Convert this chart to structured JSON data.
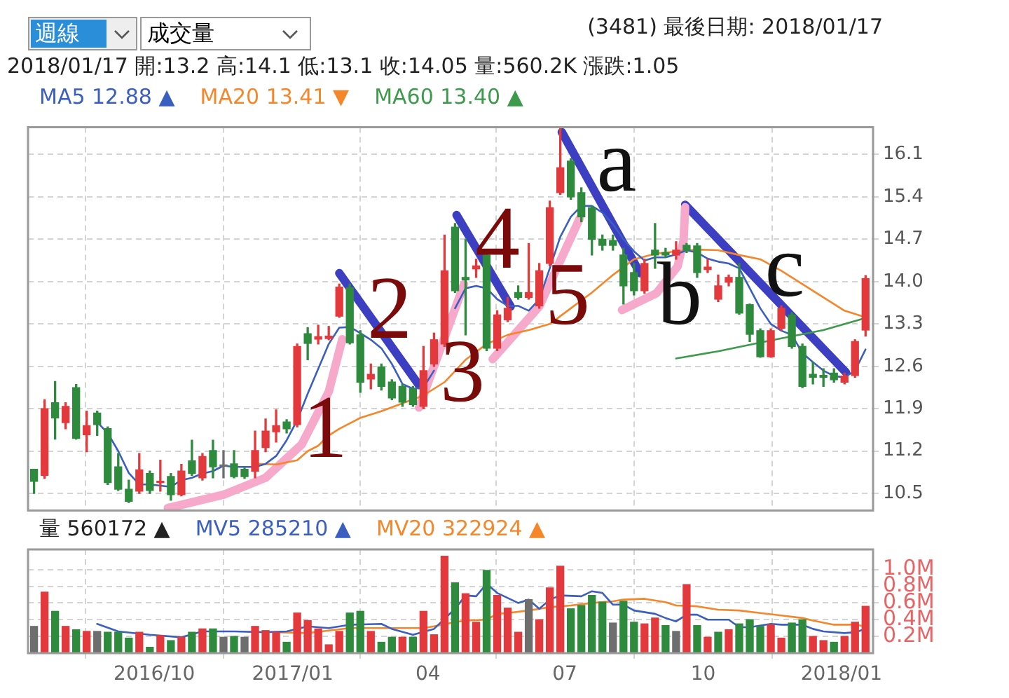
{
  "chart_data": [
    {
      "type": "candlestick",
      "title": "(3481)  最後日期: 2018/01/17",
      "subtitle": "2018/01/17 開:13.2 高:14.1 低:13.1 收:14.05 量:560.2K 漲跌:1.05",
      "x": [
        "2016-07-13",
        "2016-07-20",
        "2016-07-27",
        "2016-08-03",
        "2016-08-10",
        "2016-08-17",
        "2016-08-24",
        "2016-08-31",
        "2016-09-07",
        "2016-09-14",
        "2016-09-21",
        "2016-09-28",
        "2016-10-05",
        "2016-10-12",
        "2016-10-19",
        "2016-10-26",
        "2016-11-02",
        "2016-11-09",
        "2016-11-16",
        "2016-11-23",
        "2016-11-30",
        "2016-12-07",
        "2016-12-14",
        "2016-12-21",
        "2016-12-28",
        "2017-01-04",
        "2017-01-11",
        "2017-01-18",
        "2017-01-25",
        "2017-02-01",
        "2017-02-08",
        "2017-02-15",
        "2017-02-22",
        "2017-03-01",
        "2017-03-08",
        "2017-03-15",
        "2017-03-22",
        "2017-03-29",
        "2017-04-05",
        "2017-04-12",
        "2017-04-19",
        "2017-04-26",
        "2017-05-03",
        "2017-05-10",
        "2017-05-17",
        "2017-05-24",
        "2017-05-31",
        "2017-06-07",
        "2017-06-14",
        "2017-06-21",
        "2017-06-28",
        "2017-07-05",
        "2017-07-12",
        "2017-07-19",
        "2017-07-26",
        "2017-08-02",
        "2017-08-09",
        "2017-08-16",
        "2017-08-23",
        "2017-08-30",
        "2017-09-06",
        "2017-09-13",
        "2017-09-20",
        "2017-09-27",
        "2017-10-04",
        "2017-10-11",
        "2017-10-18",
        "2017-10-25",
        "2017-11-01",
        "2017-11-08",
        "2017-11-15",
        "2017-11-22",
        "2017-11-29",
        "2017-12-06",
        "2017-12-13",
        "2017-12-20",
        "2017-12-27",
        "2018-01-03",
        "2018-01-10",
        "2018-01-17"
      ],
      "ohlc": [
        [
          10.9,
          10.9,
          10.5,
          10.7
        ],
        [
          10.8,
          12.05,
          10.75,
          11.9
        ],
        [
          12.0,
          12.35,
          11.4,
          11.75
        ],
        [
          11.67,
          12.0,
          11.57,
          11.94
        ],
        [
          12.25,
          12.3,
          11.4,
          11.41
        ],
        [
          11.47,
          11.86,
          11.19,
          11.62
        ],
        [
          11.83,
          11.86,
          11.46,
          11.64
        ],
        [
          11.57,
          11.6,
          10.65,
          10.68
        ],
        [
          10.94,
          11.16,
          10.55,
          10.57
        ],
        [
          10.57,
          10.72,
          10.35,
          10.37
        ],
        [
          10.54,
          11.16,
          10.5,
          10.89
        ],
        [
          10.83,
          10.87,
          10.5,
          10.55
        ],
        [
          10.68,
          11.05,
          10.54,
          10.7
        ],
        [
          10.78,
          10.83,
          10.39,
          10.48
        ],
        [
          10.48,
          10.98,
          10.46,
          10.87
        ],
        [
          11.04,
          11.38,
          10.8,
          10.83
        ],
        [
          10.76,
          11.16,
          10.72,
          11.11
        ],
        [
          11.21,
          11.38,
          10.76,
          10.94
        ],
        [
          10.95,
          11.21,
          10.76,
          10.95
        ],
        [
          10.99,
          11.21,
          10.76,
          10.78
        ],
        [
          10.9,
          10.92,
          10.75,
          10.78
        ],
        [
          10.87,
          11.53,
          10.76,
          11.21
        ],
        [
          11.26,
          11.73,
          11.19,
          11.53
        ],
        [
          11.52,
          11.88,
          11.35,
          11.62
        ],
        [
          11.68,
          11.72,
          11.5,
          11.57
        ],
        [
          11.64,
          12.97,
          11.6,
          12.93
        ],
        [
          13.14,
          13.24,
          12.71,
          12.98
        ],
        [
          13.05,
          13.28,
          12.97,
          13.09
        ],
        [
          13.06,
          13.26,
          13.04,
          13.1
        ],
        [
          13.43,
          13.96,
          13.41,
          13.91
        ],
        [
          13.9,
          13.96,
          12.97,
          12.99
        ],
        [
          13.12,
          13.19,
          12.17,
          12.34
        ],
        [
          12.39,
          12.64,
          12.23,
          12.47
        ],
        [
          12.59,
          12.64,
          12.21,
          12.27
        ],
        [
          12.34,
          12.38,
          12.05,
          12.08
        ],
        [
          12.27,
          12.3,
          11.94,
          12.01
        ],
        [
          12.23,
          12.27,
          11.94,
          11.97
        ],
        [
          11.94,
          12.93,
          11.9,
          12.53
        ],
        [
          12.64,
          13.15,
          12.6,
          13.04
        ],
        [
          12.97,
          14.77,
          12.93,
          14.18
        ],
        [
          14.9,
          14.96,
          13.82,
          13.85
        ],
        [
          14.07,
          14.7,
          13.12,
          14.03
        ],
        [
          14.21,
          14.37,
          14.07,
          14.26
        ],
        [
          14.44,
          14.48,
          12.86,
          12.9
        ],
        [
          12.9,
          13.52,
          12.86,
          13.45
        ],
        [
          13.37,
          13.74,
          13.34,
          13.56
        ],
        [
          13.82,
          13.93,
          13.71,
          13.74
        ],
        [
          13.74,
          14.63,
          13.71,
          13.82
        ],
        [
          13.6,
          14.3,
          13.56,
          14.18
        ],
        [
          14.3,
          15.33,
          14.26,
          15.22
        ],
        [
          15.47,
          16.54,
          15.44,
          15.88
        ],
        [
          15.99,
          16.03,
          15.36,
          15.4
        ],
        [
          15.47,
          15.55,
          14.99,
          15.07
        ],
        [
          15.22,
          15.25,
          14.44,
          14.7
        ],
        [
          14.7,
          14.77,
          14.52,
          14.6
        ],
        [
          14.68,
          14.77,
          14.52,
          14.6
        ],
        [
          14.44,
          14.55,
          13.63,
          13.93
        ],
        [
          14.15,
          14.3,
          13.78,
          13.85
        ],
        [
          13.85,
          14.37,
          13.81,
          14.3
        ],
        [
          14.52,
          14.96,
          14.22,
          14.44
        ],
        [
          14.48,
          14.55,
          14.4,
          14.44
        ],
        [
          14.44,
          14.66,
          14.37,
          14.52
        ],
        [
          14.6,
          14.63,
          14.48,
          14.52
        ],
        [
          14.59,
          14.63,
          14.07,
          14.15
        ],
        [
          14.2,
          14.37,
          14.15,
          14.24
        ],
        [
          13.71,
          14.11,
          13.67,
          13.93
        ],
        [
          13.99,
          14.11,
          13.93,
          14.07
        ],
        [
          14.07,
          14.3,
          13.46,
          13.48
        ],
        [
          13.62,
          13.63,
          13.01,
          13.13
        ],
        [
          13.19,
          13.22,
          12.75,
          12.76
        ],
        [
          12.76,
          13.22,
          12.75,
          13.19
        ],
        [
          13.23,
          13.6,
          13.2,
          13.56
        ],
        [
          13.45,
          13.49,
          12.9,
          12.93
        ],
        [
          12.93,
          12.97,
          12.25,
          12.27
        ],
        [
          12.47,
          12.67,
          12.31,
          12.42
        ],
        [
          12.45,
          12.56,
          12.27,
          12.42
        ],
        [
          12.49,
          12.56,
          12.34,
          12.38
        ],
        [
          12.34,
          12.49,
          12.31,
          12.44
        ],
        [
          12.45,
          13.04,
          12.42,
          13.01
        ],
        [
          13.2,
          14.1,
          13.1,
          14.05
        ]
      ],
      "colors": [
        "#2e8b3e",
        "#e4393c",
        "#2e8b3e",
        "#e4393c",
        "#2e8b3e",
        "#e4393c",
        "#2e8b3e",
        "#2e8b3e",
        "#2e8b3e",
        "#2e8b3e",
        "#e4393c",
        "#2e8b3e",
        "#e4393c",
        "#2e8b3e",
        "#e4393c",
        "#2e8b3e",
        "#e4393c",
        "#2e8b3e",
        "#6e6e6e",
        "#2e8b3e",
        "#2e8b3e",
        "#e4393c",
        "#e4393c",
        "#e4393c",
        "#2e8b3e",
        "#e4393c",
        "#2e8b3e",
        "#e4393c",
        "#e4393c",
        "#e4393c",
        "#2e8b3e",
        "#2e8b3e",
        "#e4393c",
        "#2e8b3e",
        "#2e8b3e",
        "#2e8b3e",
        "#2e8b3e",
        "#e4393c",
        "#e4393c",
        "#e4393c",
        "#2e8b3e",
        "#2e8b3e",
        "#e4393c",
        "#2e8b3e",
        "#e4393c",
        "#e4393c",
        "#2e8b3e",
        "#e4393c",
        "#e4393c",
        "#e4393c",
        "#e4393c",
        "#2e8b3e",
        "#2e8b3e",
        "#2e8b3e",
        "#2e8b3e",
        "#2e8b3e",
        "#2e8b3e",
        "#2e8b3e",
        "#e4393c",
        "#2e8b3e",
        "#2e8b3e",
        "#e4393c",
        "#2e8b3e",
        "#2e8b3e",
        "#e4393c",
        "#e4393c",
        "#e4393c",
        "#2e8b3e",
        "#2e8b3e",
        "#2e8b3e",
        "#e4393c",
        "#e4393c",
        "#2e8b3e",
        "#2e8b3e",
        "#2e8b3e",
        "#2e8b3e",
        "#2e8b3e",
        "#e4393c",
        "#e4393c",
        "#e4393c"
      ],
      "series": [
        {
          "type": "line",
          "name": "MA5 12.88 ▲",
          "color": "#3a5fc0",
          "values": [
            null,
            null,
            null,
            null,
            null,
            null,
            11.68,
            11.5,
            11.2,
            10.84,
            10.65,
            10.65,
            10.63,
            10.61,
            10.72,
            10.76,
            10.83,
            10.87,
            10.96,
            10.94,
            10.94,
            10.94,
            10.99,
            11.12,
            11.38,
            11.71,
            12.15,
            12.56,
            12.97,
            13.24,
            13.25,
            13.15,
            13.04,
            12.9,
            12.64,
            12.31,
            12.23,
            12.25,
            12.53,
            null,
            13.56,
            13.89,
            13.93,
            13.89,
            13.71,
            13.6,
            13.6,
            13.52,
            13.71,
            14.22,
            14.74,
            15.07,
            15.25,
            15.25,
            15.14,
            14.95,
            14.7,
            14.5,
            14.35,
            14.4,
            14.4,
            14.45,
            14.52,
            14.48,
            14.38,
            14.33,
            14.3,
            14.22,
            13.89,
            13.56,
            13.3,
            13.19,
            13.12,
            12.82,
            12.67,
            12.53,
            12.44,
            12.42,
            12.53,
            12.88
          ]
        },
        {
          "type": "line",
          "name": "MA20 13.41 ▼",
          "color": "#f5862a",
          "x": [
            "2016-12-07",
            "2016-12-21",
            "2017-01-04",
            "2017-01-11",
            "2017-01-18",
            "2017-01-25",
            "2017-02-01",
            "2017-02-15",
            "2017-03-01",
            "2017-03-15",
            "2017-03-29",
            "2017-04-12",
            "2017-04-26",
            "2017-05-10",
            "2017-05-24",
            "2017-06-07",
            "2017-06-21",
            "2017-07-05",
            "2017-07-19",
            "2017-08-02",
            "2017-08-16",
            "2017-08-30",
            "2017-09-13",
            "2017-09-27",
            "2017-10-11",
            "2017-10-25",
            "2017-11-08",
            "2017-11-22",
            "2017-12-06",
            "2017-12-20",
            "2018-01-03",
            "2018-01-17"
          ],
          "values": [
            10.99,
            10.98,
            11.05,
            11.2,
            11.29,
            11.46,
            11.57,
            11.75,
            11.86,
            11.99,
            12.12,
            12.34,
            12.71,
            12.97,
            13.12,
            13.2,
            13.3,
            13.56,
            13.82,
            14.11,
            14.37,
            14.46,
            14.5,
            14.53,
            14.52,
            14.44,
            14.37,
            14.18,
            13.96,
            13.74,
            13.52,
            13.41
          ]
        },
        {
          "type": "line",
          "name": "MA60 13.40 ▲",
          "color": "#3c9a4a",
          "x": [
            "2017-09-13",
            "2017-10-11",
            "2017-11-15",
            "2017-12-20",
            "2018-01-17"
          ],
          "values": [
            12.73,
            12.85,
            13.03,
            13.2,
            13.4
          ]
        },
        {
          "type": "line",
          "color": "#f6a9cb",
          "x": [
            "2016-10-10",
            "2016-11-16",
            "2016-12-14",
            "2017-01-07",
            "2017-01-25",
            "2017-02-03"
          ],
          "values": [
            10.26,
            10.48,
            10.76,
            11.31,
            12.18,
            13.05
          ]
        },
        {
          "type": "line",
          "color": "#3d3fc2",
          "x": [
            "2017-02-01",
            "2017-03-26"
          ],
          "values": [
            14.14,
            12.29
          ]
        },
        {
          "type": "line",
          "color": "#f6a9cb",
          "x": [
            "2017-03-26",
            "2017-04-25"
          ],
          "values": [
            11.92,
            13.96
          ]
        },
        {
          "type": "line",
          "color": "#3d3fc2",
          "x": [
            "2017-04-20",
            "2017-05-26"
          ],
          "values": [
            15.1,
            13.59
          ]
        },
        {
          "type": "line",
          "color": "#f6a9cb",
          "x": [
            "2017-05-14",
            "2017-06-14",
            "2017-07-11"
          ],
          "values": [
            12.72,
            13.59,
            15.05
          ]
        },
        {
          "type": "line",
          "color": "#3d3fc2",
          "x": [
            "2017-06-29",
            "2017-08-20"
          ],
          "values": [
            16.47,
            14.14
          ]
        },
        {
          "type": "line",
          "color": "#f6a9cb",
          "x": [
            "2017-08-08",
            "2017-08-31",
            "2017-09-14",
            "2017-09-18",
            "2017-09-19"
          ],
          "values": [
            13.53,
            13.81,
            14.25,
            14.68,
            15.23
          ]
        },
        {
          "type": "line",
          "color": "#3d3fc2",
          "x": [
            "2017-09-19",
            "2018-01-04"
          ],
          "values": [
            15.27,
            12.5
          ]
        }
      ],
      "annotations": [
        "週線",
        "成交量",
        "1",
        "2",
        "3",
        "4",
        "5",
        "a",
        "b",
        "c"
      ],
      "xlim": [
        "2016-07-09",
        "2018-01-22"
      ],
      "xticks": [
        {
          "value": "2016-10-01",
          "label": null
        },
        {
          "value": "2017-01-01",
          "label": null
        },
        {
          "value": "2017-04-01",
          "label": null
        },
        {
          "value": "2017-07-01",
          "label": null
        },
        {
          "value": "2017-10-01",
          "label": null
        },
        {
          "value": "2018-01-01",
          "label": null
        }
      ],
      "ylim": [
        10.22,
        16.55
      ],
      "yticks": [
        10.5,
        11.2,
        11.9,
        12.6,
        13.3,
        {
          "value": 14,
          "label": "14.0"
        },
        14.7,
        15.4,
        16.1
      ],
      "grid": true,
      "legend": "top left",
      "marker": "none",
      "tick_labels": "y"
    },
    {
      "type": "bar",
      "x": [
        "2016-07-13",
        "2016-07-20",
        "2016-07-27",
        "2016-08-03",
        "2016-08-10",
        "2016-08-17",
        "2016-08-24",
        "2016-08-31",
        "2016-09-07",
        "2016-09-14",
        "2016-09-21",
        "2016-09-28",
        "2016-10-05",
        "2016-10-12",
        "2016-10-19",
        "2016-10-26",
        "2016-11-02",
        "2016-11-09",
        "2016-11-16",
        "2016-11-23",
        "2016-11-30",
        "2016-12-07",
        "2016-12-14",
        "2016-12-21",
        "2016-12-28",
        "2017-01-04",
        "2017-01-11",
        "2017-01-18",
        "2017-01-25",
        "2017-02-01",
        "2017-02-08",
        "2017-02-15",
        "2017-02-22",
        "2017-03-01",
        "2017-03-08",
        "2017-03-15",
        "2017-03-22",
        "2017-03-29",
        "2017-04-05",
        "2017-04-12",
        "2017-04-19",
        "2017-04-26",
        "2017-05-03",
        "2017-05-10",
        "2017-05-17",
        "2017-05-24",
        "2017-05-31",
        "2017-06-07",
        "2017-06-14",
        "2017-06-21",
        "2017-06-28",
        "2017-07-05",
        "2017-07-12",
        "2017-07-19",
        "2017-07-26",
        "2017-08-02",
        "2017-08-09",
        "2017-08-16",
        "2017-08-23",
        "2017-08-30",
        "2017-09-06",
        "2017-09-13",
        "2017-09-20",
        "2017-09-27",
        "2017-10-04",
        "2017-10-11",
        "2017-10-18",
        "2017-10-25",
        "2017-11-01",
        "2017-11-08",
        "2017-11-15",
        "2017-11-22",
        "2017-11-29",
        "2017-12-06",
        "2017-12-13",
        "2017-12-20",
        "2017-12-27",
        "2018-01-03",
        "2018-01-10",
        "2018-01-17"
      ],
      "series": [
        {
          "name": "量 560172 ▲",
          "values": [
            0.32,
            0.73,
            0.5,
            0.32,
            0.28,
            0.26,
            0.26,
            0.25,
            0.25,
            0.18,
            0.25,
            0.07,
            0.21,
            0.15,
            0.19,
            0.25,
            0.29,
            0.29,
            0.19,
            0.2,
            0.19,
            0.32,
            0.27,
            0.25,
            0.13,
            0.48,
            0.39,
            0.29,
            0.1,
            0.26,
            0.48,
            0.5,
            0.26,
            0.13,
            0.19,
            0.19,
            0.19,
            0.5,
            0.22,
            1.16,
            0.84,
            0.71,
            0.37,
            0.99,
            0.69,
            0.54,
            0.25,
            0.64,
            0.4,
            0.78,
            1.04,
            0.53,
            0.57,
            0.69,
            0.61,
            0.36,
            0.62,
            0.37,
            0.35,
            0.42,
            0.33,
            0.26,
            0.82,
            0.33,
            0.19,
            0.25,
            0.28,
            0.35,
            0.4,
            0.32,
            0.34,
            0.18,
            0.36,
            0.4,
            0.2,
            0.15,
            0.13,
            0.2,
            0.37,
            0.56
          ],
          "colors": [
            "#6e6e6e",
            "#e4393c",
            "#2e8b3e",
            "#e4393c",
            "#2e8b3e",
            "#e4393c",
            "#6e6e6e",
            "#2e8b3e",
            "#2e8b3e",
            "#2e8b3e",
            "#e4393c",
            "#2e8b3e",
            "#e4393c",
            "#2e8b3e",
            "#e4393c",
            "#2e8b3e",
            "#e4393c",
            "#2e8b3e",
            "#6e6e6e",
            "#2e8b3e",
            "#6e6e6e",
            "#e4393c",
            "#e4393c",
            "#e4393c",
            "#2e8b3e",
            "#e4393c",
            "#e4393c",
            "#e4393c",
            "#e4393c",
            "#e4393c",
            "#2e8b3e",
            "#2e8b3e",
            "#e4393c",
            "#2e8b3e",
            "#2e8b3e",
            "#e4393c",
            "#2e8b3e",
            "#e4393c",
            "#e4393c",
            "#e4393c",
            "#2e8b3e",
            "#e4393c",
            "#e4393c",
            "#2e8b3e",
            "#e4393c",
            "#e4393c",
            "#e4393c",
            "#6e6e6e",
            "#e4393c",
            "#e4393c",
            "#e4393c",
            "#2e8b3e",
            "#2e8b3e",
            "#2e8b3e",
            "#2e8b3e",
            "#6e6e6e",
            "#2e8b3e",
            "#2e8b3e",
            "#e4393c",
            "#e4393c",
            "#2e8b3e",
            "#6e6e6e",
            "#e4393c",
            "#2e8b3e",
            "#e4393c",
            "#2e8b3e",
            "#e4393c",
            "#2e8b3e",
            "#2e8b3e",
            "#2e8b3e",
            "#e4393c",
            "#e4393c",
            "#2e8b3e",
            "#2e8b3e",
            "#e4393c",
            "#e4393c",
            "#2e8b3e",
            "#e4393c",
            "#e4393c",
            "#e4393c"
          ]
        },
        {
          "type": "line",
          "name": "MV5 285210 ▲",
          "color": "#3a5fc0",
          "x": [
            "2016-08-24",
            "2016-09-07",
            "2016-09-28",
            "2016-10-19",
            "2016-11-02",
            "2016-11-23",
            "2016-12-14",
            "2016-12-28",
            "2017-01-11",
            "2017-01-25",
            "2017-02-08",
            "2017-03-01",
            "2017-03-08",
            "2017-03-22",
            "2017-04-05",
            "2017-04-19",
            "2017-04-26",
            "2017-05-03",
            "2017-05-10",
            "2017-05-17",
            "2017-05-31",
            "2017-06-07",
            "2017-06-14",
            "2017-06-21",
            "2017-06-28",
            "2017-07-12",
            "2017-07-19",
            "2017-07-26",
            "2017-08-02",
            "2017-08-09",
            "2017-08-16",
            "2017-08-30",
            "2017-09-06",
            "2017-09-13",
            "2017-09-20",
            "2017-09-27",
            "2017-10-04",
            "2017-10-18",
            "2017-10-25",
            "2017-11-01",
            "2017-11-15",
            "2017-11-22",
            "2017-12-06",
            "2017-12-13",
            "2017-12-20",
            "2018-01-03",
            "2018-01-10",
            "2018-01-17"
          ],
          "values": [
            0.35,
            0.26,
            0.22,
            0.19,
            0.26,
            0.26,
            0.25,
            0.26,
            0.32,
            0.3,
            0.34,
            0.35,
            0.29,
            0.22,
            0.29,
            0.53,
            0.69,
            0.68,
            0.83,
            0.72,
            0.6,
            0.64,
            0.53,
            0.64,
            0.69,
            0.68,
            0.74,
            0.72,
            0.58,
            0.58,
            0.51,
            0.47,
            0.42,
            0.38,
            0.46,
            0.46,
            0.4,
            0.4,
            0.31,
            0.31,
            0.35,
            0.34,
            0.34,
            0.29,
            0.26,
            0.24,
            0.25,
            0.29
          ]
        },
        {
          "type": "line",
          "name": "MV20 322924 ▲",
          "color": "#f5862a",
          "x": [
            "2016-12-21",
            "2017-01-11",
            "2017-01-25",
            "2017-02-08",
            "2017-03-08",
            "2017-03-29",
            "2017-04-05",
            "2017-04-19",
            "2017-04-26",
            "2017-05-10",
            "2017-05-17",
            "2017-05-24",
            "2017-06-07",
            "2017-06-21",
            "2017-07-05",
            "2017-07-19",
            "2017-08-02",
            "2017-08-09",
            "2017-08-23",
            "2017-09-06",
            "2017-09-13",
            "2017-09-27",
            "2017-10-11",
            "2017-10-25",
            "2017-11-08",
            "2017-11-22",
            "2017-12-06",
            "2017-12-13",
            "2017-12-27",
            "2018-01-10",
            "2018-01-17"
          ],
          "values": [
            0.25,
            0.24,
            0.27,
            0.3,
            0.3,
            0.3,
            0.32,
            0.37,
            0.39,
            0.4,
            0.47,
            0.48,
            0.51,
            0.55,
            0.57,
            0.6,
            0.62,
            0.64,
            0.65,
            0.61,
            0.57,
            0.56,
            0.52,
            0.51,
            0.48,
            0.45,
            0.42,
            0.39,
            0.34,
            0.34,
            0.32
          ]
        }
      ],
      "xlim": [
        "2016-07-09",
        "2018-01-22"
      ],
      "xticks": [
        {
          "value": "2016-10-01",
          "label": "2016/10"
        },
        {
          "value": "2017-01-01",
          "label": "2017/01"
        },
        {
          "value": "2017-04-01",
          "label": "04"
        },
        {
          "value": "2017-07-01",
          "label": "07"
        },
        {
          "value": "2017-10-01",
          "label": "10"
        },
        {
          "value": "2018-01-01",
          "label": "2018/01"
        }
      ],
      "ylim": [
        0,
        1.24
      ],
      "yticks": [
        {
          "value": 0.2,
          "label": "0.2M"
        },
        {
          "value": 0.4,
          "label": "0.4M"
        },
        {
          "value": 0.6,
          "label": "0.6M"
        },
        {
          "value": 0.8,
          "label": "0.8M"
        },
        {
          "value": 1.0,
          "label": "1.0M"
        }
      ],
      "grid": true,
      "legend": "top left",
      "marker": "none"
    }
  ]
}
